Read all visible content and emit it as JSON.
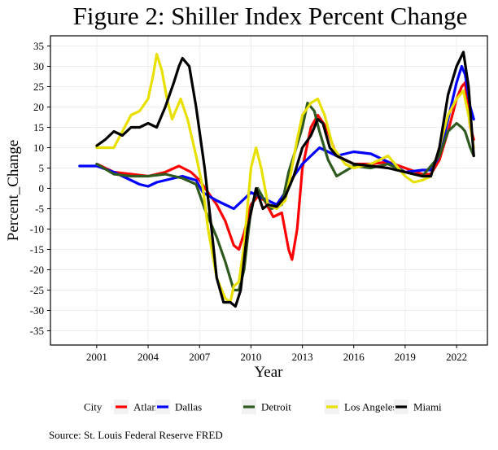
{
  "chart_data": {
    "type": "line",
    "title": "Figure 2: Shiller Index Percent Change",
    "xlabel": "Year",
    "ylabel": "Percent_Change",
    "xlim": [
      1998.3,
      2023.8
    ],
    "ylim": [
      -38.5,
      37.5
    ],
    "yticks": [
      -35,
      -30,
      -25,
      -20,
      -15,
      -10,
      -5,
      0,
      5,
      10,
      15,
      20,
      25,
      30,
      35
    ],
    "xticks": [
      2001,
      2004,
      2007,
      2010,
      2013,
      2016,
      2019,
      2022
    ],
    "grid": true,
    "legend_title": "City",
    "legend_position": "bottom",
    "caption": "Source: St. Louis Federal Reserve FRED",
    "series": [
      {
        "name": "Atlanta",
        "color": "#ff0000",
        "points": [
          [
            2001,
            6
          ],
          [
            2002,
            4
          ],
          [
            2003,
            3.5
          ],
          [
            2004,
            3
          ],
          [
            2005,
            4
          ],
          [
            2005.8,
            5.5
          ],
          [
            2006.5,
            4
          ],
          [
            2007,
            2
          ],
          [
            2007.5,
            -1
          ],
          [
            2008,
            -4
          ],
          [
            2008.5,
            -8
          ],
          [
            2009,
            -14
          ],
          [
            2009.3,
            -15
          ],
          [
            2009.6,
            -11
          ],
          [
            2010,
            -4
          ],
          [
            2010.4,
            -2
          ],
          [
            2010.8,
            -3
          ],
          [
            2011.3,
            -7
          ],
          [
            2011.8,
            -6
          ],
          [
            2012.2,
            -15
          ],
          [
            2012.4,
            -17.5
          ],
          [
            2012.7,
            -10
          ],
          [
            2013,
            5
          ],
          [
            2013.5,
            15
          ],
          [
            2013.9,
            18
          ],
          [
            2014.4,
            15
          ],
          [
            2015,
            8
          ],
          [
            2016,
            6
          ],
          [
            2017,
            6
          ],
          [
            2018,
            6.5
          ],
          [
            2019,
            5
          ],
          [
            2020,
            3.5
          ],
          [
            2020.5,
            3.5
          ],
          [
            2021,
            7
          ],
          [
            2021.5,
            14
          ],
          [
            2022,
            22
          ],
          [
            2022.3,
            25
          ],
          [
            2022.5,
            26
          ],
          [
            2022.8,
            15
          ],
          [
            2023,
            12
          ]
        ]
      },
      {
        "name": "Dallas",
        "color": "#0000ff",
        "points": [
          [
            2000,
            5.5
          ],
          [
            2001,
            5.5
          ],
          [
            2002,
            4
          ],
          [
            2003,
            2
          ],
          [
            2003.5,
            1
          ],
          [
            2004,
            0.5
          ],
          [
            2004.5,
            1.5
          ],
          [
            2005,
            2
          ],
          [
            2006,
            3
          ],
          [
            2006.8,
            2
          ],
          [
            2007.2,
            -1
          ],
          [
            2008,
            -3
          ],
          [
            2008.5,
            -4
          ],
          [
            2009,
            -5
          ],
          [
            2009.5,
            -3
          ],
          [
            2010,
            -1
          ],
          [
            2010.5,
            -2
          ],
          [
            2011,
            -3
          ],
          [
            2011.5,
            -4
          ],
          [
            2012,
            -1
          ],
          [
            2012.5,
            3
          ],
          [
            2013,
            6
          ],
          [
            2013.5,
            8
          ],
          [
            2014,
            10
          ],
          [
            2014.5,
            9
          ],
          [
            2015,
            8
          ],
          [
            2016,
            9
          ],
          [
            2017,
            8.5
          ],
          [
            2018,
            6.5
          ],
          [
            2019,
            4
          ],
          [
            2020,
            4.5
          ],
          [
            2020.5,
            4.5
          ],
          [
            2021,
            8
          ],
          [
            2021.5,
            17
          ],
          [
            2022,
            26
          ],
          [
            2022.3,
            30
          ],
          [
            2022.5,
            28
          ],
          [
            2022.8,
            20
          ],
          [
            2023,
            17
          ]
        ]
      },
      {
        "name": "Detroit",
        "color": "#2f5a1f",
        "points": [
          [
            2001,
            6
          ],
          [
            2002,
            3.5
          ],
          [
            2003,
            3
          ],
          [
            2004,
            3
          ],
          [
            2005,
            3.5
          ],
          [
            2006,
            2.5
          ],
          [
            2006.8,
            1
          ],
          [
            2007.3,
            -5
          ],
          [
            2008,
            -12
          ],
          [
            2008.5,
            -18
          ],
          [
            2009,
            -25
          ],
          [
            2009.3,
            -25
          ],
          [
            2009.6,
            -20
          ],
          [
            2010,
            -5
          ],
          [
            2010.4,
            0
          ],
          [
            2010.8,
            -3
          ],
          [
            2011.2,
            -5
          ],
          [
            2011.8,
            -4
          ],
          [
            2012.2,
            4
          ],
          [
            2012.5,
            8
          ],
          [
            2013,
            15
          ],
          [
            2013.3,
            21
          ],
          [
            2013.7,
            19
          ],
          [
            2014,
            14
          ],
          [
            2014.5,
            7
          ],
          [
            2015,
            3
          ],
          [
            2016,
            5.5
          ],
          [
            2017,
            5
          ],
          [
            2018,
            6
          ],
          [
            2019,
            4
          ],
          [
            2020,
            3
          ],
          [
            2021,
            8
          ],
          [
            2021.5,
            14
          ],
          [
            2022,
            16
          ],
          [
            2022.3,
            15
          ],
          [
            2022.5,
            14
          ],
          [
            2022.8,
            10
          ],
          [
            2023,
            8
          ]
        ]
      },
      {
        "name": "Los Angeles",
        "color": "#e8e000",
        "points": [
          [
            2001,
            10
          ],
          [
            2002,
            10
          ],
          [
            2002.5,
            14
          ],
          [
            2003,
            18
          ],
          [
            2003.5,
            19
          ],
          [
            2004,
            22
          ],
          [
            2004.3,
            28
          ],
          [
            2004.5,
            33
          ],
          [
            2004.8,
            29
          ],
          [
            2005.1,
            22
          ],
          [
            2005.4,
            17
          ],
          [
            2005.7,
            20
          ],
          [
            2005.9,
            22
          ],
          [
            2006.3,
            17
          ],
          [
            2006.8,
            8
          ],
          [
            2007.2,
            0
          ],
          [
            2007.5,
            -10
          ],
          [
            2008,
            -22
          ],
          [
            2008.5,
            -27
          ],
          [
            2008.8,
            -28
          ],
          [
            2009,
            -24
          ],
          [
            2009.3,
            -23
          ],
          [
            2009.6,
            -14
          ],
          [
            2010,
            5
          ],
          [
            2010.3,
            10
          ],
          [
            2010.6,
            5
          ],
          [
            2011,
            -4
          ],
          [
            2011.5,
            -5
          ],
          [
            2012,
            -3
          ],
          [
            2012.3,
            3
          ],
          [
            2012.7,
            12
          ],
          [
            2013,
            18
          ],
          [
            2013.5,
            21
          ],
          [
            2013.9,
            22
          ],
          [
            2014.3,
            18
          ],
          [
            2014.8,
            10
          ],
          [
            2015.5,
            6
          ],
          [
            2016,
            5
          ],
          [
            2017,
            6
          ],
          [
            2018,
            8
          ],
          [
            2019,
            3
          ],
          [
            2019.5,
            1.5
          ],
          [
            2020,
            2
          ],
          [
            2020.5,
            3
          ],
          [
            2021,
            10
          ],
          [
            2021.5,
            18
          ],
          [
            2022,
            22
          ],
          [
            2022.4,
            24
          ],
          [
            2022.7,
            18
          ],
          [
            2023,
            10
          ]
        ]
      },
      {
        "name": "Miami",
        "color": "#000000",
        "points": [
          [
            2001,
            10.5
          ],
          [
            2001.5,
            12
          ],
          [
            2002,
            14
          ],
          [
            2002.5,
            13
          ],
          [
            2003,
            15
          ],
          [
            2003.5,
            15
          ],
          [
            2004,
            16
          ],
          [
            2004.5,
            15
          ],
          [
            2005,
            20
          ],
          [
            2005.5,
            26
          ],
          [
            2005.8,
            30
          ],
          [
            2006,
            32
          ],
          [
            2006.4,
            30
          ],
          [
            2006.8,
            20
          ],
          [
            2007.3,
            5
          ],
          [
            2007.7,
            -10
          ],
          [
            2008,
            -22
          ],
          [
            2008.4,
            -28
          ],
          [
            2008.8,
            -28
          ],
          [
            2009.1,
            -29
          ],
          [
            2009.4,
            -25
          ],
          [
            2009.8,
            -10
          ],
          [
            2010.3,
            0
          ],
          [
            2010.7,
            -5
          ],
          [
            2011,
            -4
          ],
          [
            2011.5,
            -4.5
          ],
          [
            2012,
            -2
          ],
          [
            2012.5,
            3
          ],
          [
            2013,
            10
          ],
          [
            2013.5,
            13
          ],
          [
            2013.9,
            17
          ],
          [
            2014.2,
            16
          ],
          [
            2014.6,
            10
          ],
          [
            2015,
            8
          ],
          [
            2016,
            6
          ],
          [
            2017,
            5.5
          ],
          [
            2018,
            5
          ],
          [
            2019,
            4
          ],
          [
            2020,
            3
          ],
          [
            2020.5,
            3
          ],
          [
            2021,
            10
          ],
          [
            2021.5,
            23
          ],
          [
            2022,
            30
          ],
          [
            2022.4,
            33.5
          ],
          [
            2022.7,
            25
          ],
          [
            2023,
            8
          ]
        ]
      }
    ]
  }
}
